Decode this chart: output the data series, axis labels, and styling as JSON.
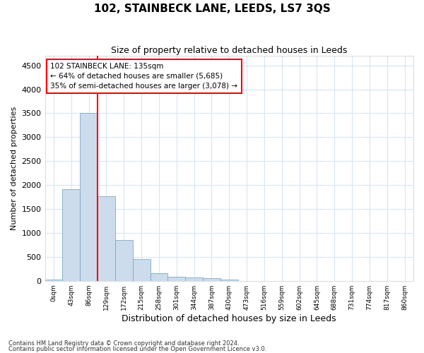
{
  "title": "102, STAINBECK LANE, LEEDS, LS7 3QS",
  "subtitle": "Size of property relative to detached houses in Leeds",
  "xlabel": "Distribution of detached houses by size in Leeds",
  "ylabel": "Number of detached properties",
  "bin_labels": [
    "0sqm",
    "43sqm",
    "86sqm",
    "129sqm",
    "172sqm",
    "215sqm",
    "258sqm",
    "301sqm",
    "344sqm",
    "387sqm",
    "430sqm",
    "473sqm",
    "516sqm",
    "559sqm",
    "602sqm",
    "645sqm",
    "688sqm",
    "731sqm",
    "774sqm",
    "817sqm",
    "860sqm"
  ],
  "bar_heights": [
    30,
    1920,
    3500,
    1760,
    850,
    460,
    160,
    90,
    75,
    50,
    30,
    0,
    0,
    0,
    0,
    0,
    0,
    0,
    0,
    0,
    0
  ],
  "bar_color": "#ccdcec",
  "bar_edge_color": "#7aaac8",
  "vline_x_index": 3,
  "vline_color": "red",
  "annotation_text": "102 STAINBECK LANE: 135sqm\n← 64% of detached houses are smaller (5,685)\n35% of semi-detached houses are larger (3,078) →",
  "annotation_box_color": "white",
  "annotation_box_edge": "red",
  "ylim": [
    0,
    4700
  ],
  "yticks": [
    0,
    500,
    1000,
    1500,
    2000,
    2500,
    3000,
    3500,
    4000,
    4500
  ],
  "footnote1": "Contains HM Land Registry data © Crown copyright and database right 2024.",
  "footnote2": "Contains public sector information licensed under the Open Government Licence v3.0.",
  "background_color": "#ffffff",
  "plot_bg_color": "#ffffff",
  "grid_color": "#d8e4f0",
  "title_fontsize": 11,
  "subtitle_fontsize": 9,
  "ylabel_fontsize": 8,
  "xlabel_fontsize": 9
}
